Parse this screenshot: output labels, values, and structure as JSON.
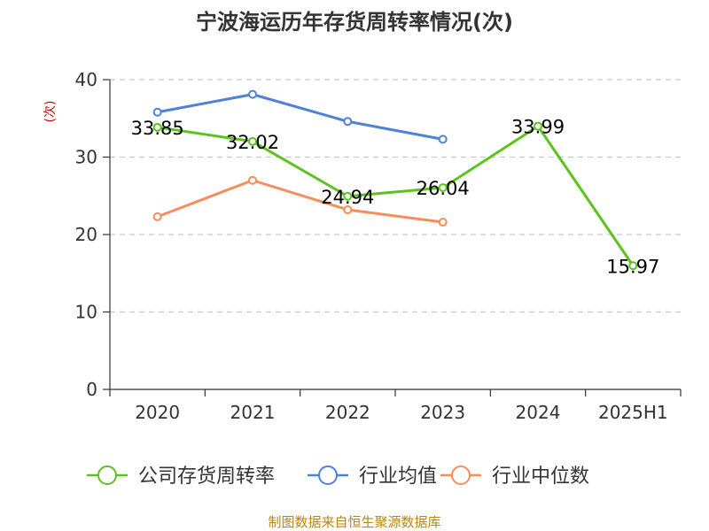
{
  "chart_data": {
    "type": "line",
    "title": "宁波海运历年存货周转率情况(次)",
    "ylabel": "(次)",
    "xlabel": "",
    "categories": [
      "2020",
      "2021",
      "2022",
      "2023",
      "2024",
      "2025H1"
    ],
    "ylim": [
      0,
      40
    ],
    "yticks": [
      0,
      10,
      20,
      30,
      40
    ],
    "grid": true,
    "legend_position": "bottom",
    "series": [
      {
        "name": "公司存货周转率",
        "color": "#5cc21e",
        "values": [
          33.85,
          32.02,
          24.94,
          26.04,
          33.99,
          15.97
        ],
        "labels": [
          "33.85",
          "32.02",
          "24.94",
          "26.04",
          "33.99",
          "15.97"
        ]
      },
      {
        "name": "行业均值",
        "color": "#4f81d9",
        "values": [
          35.8,
          38.1,
          34.6,
          32.3,
          null,
          null
        ]
      },
      {
        "name": "行业中位数",
        "color": "#f78d5a",
        "values": [
          22.3,
          27.0,
          23.2,
          21.6,
          null,
          null
        ]
      }
    ],
    "source": "制图数据来自恒生聚源数据库"
  }
}
